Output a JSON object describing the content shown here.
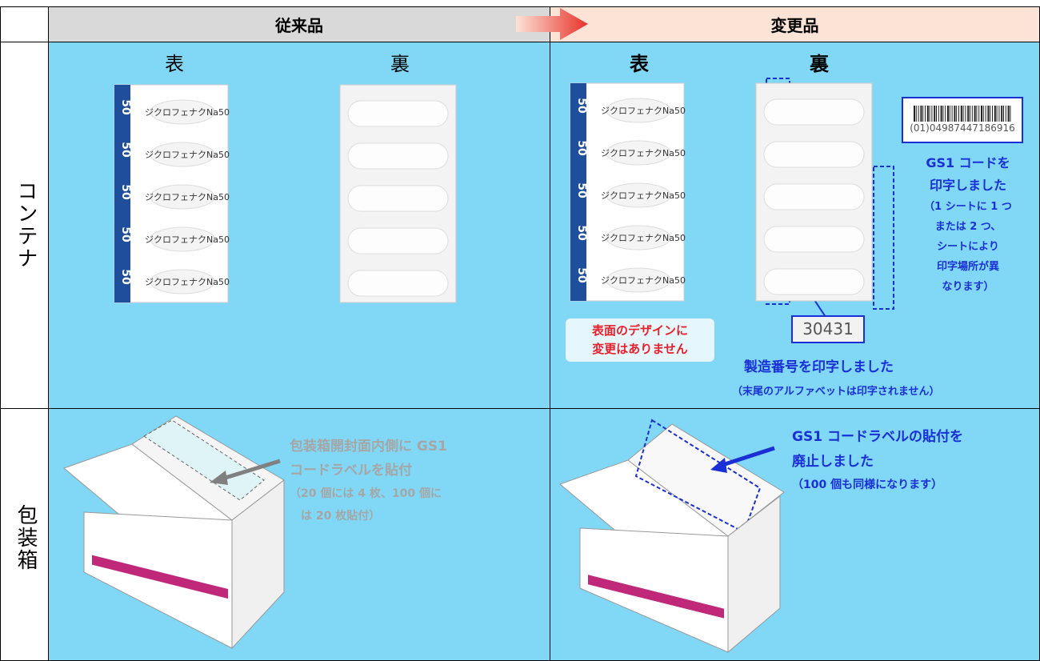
{
  "header": {
    "old": "従来品",
    "new": "変更品"
  },
  "rows": {
    "container": "コンテナ",
    "box": "包装箱"
  },
  "container": {
    "old_front": "表",
    "old_back": "裏",
    "new_front": "表",
    "new_back": "裏",
    "product_label": "ジクロフェナクNa50",
    "strength": "50",
    "front_note": [
      "表面のデザインに",
      "変更はありません"
    ],
    "lot_sample": "30431",
    "lot_note": "製造番号を印字しました",
    "lot_subnote": "（末尾のアルファベットは印字されません）",
    "gs1_number": "(01)04987447186916",
    "gs1_note": [
      "GS1 コードを",
      "印字しました",
      "（1 シートに 1 つ",
      "または 2 つ、",
      "シートにより",
      "印字場所が異",
      "なります）"
    ]
  },
  "box": {
    "old_note": [
      "包装箱開封面内側に GS1",
      "コードラベルを貼付",
      "（20 個には 4 枚、100 個に",
      "は 20 枚貼付）"
    ],
    "new_note": [
      "GS1 コードラベルの貼付を",
      "廃止しました",
      "（100 個も同様になります）"
    ]
  }
}
